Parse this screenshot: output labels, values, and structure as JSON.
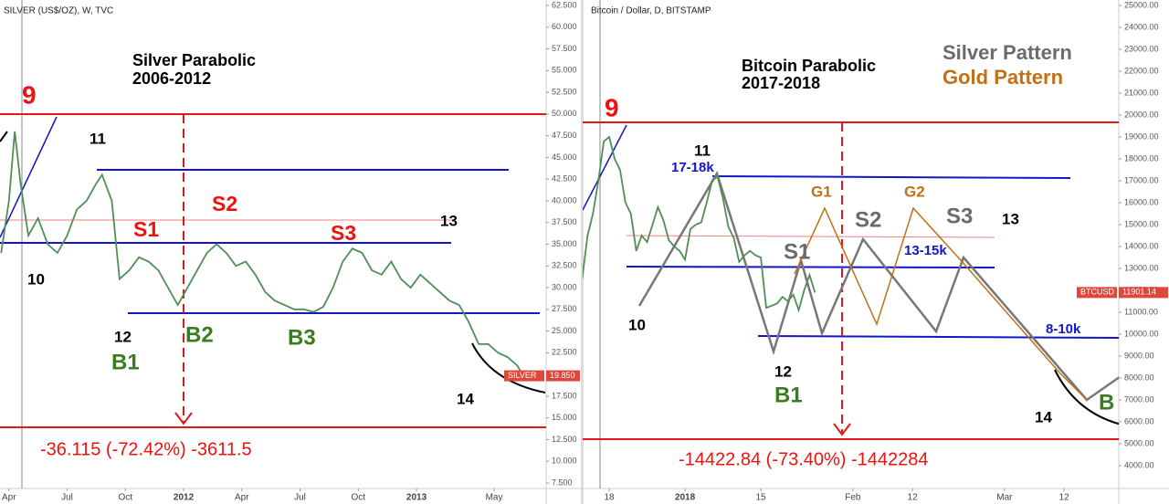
{
  "chart_data": [
    {
      "type": "line",
      "source": "SILVER (US$/OZ), W, TVC",
      "title": "Silver Parabolic",
      "subtitle": "2006-2012",
      "x": [
        2.6,
        3.0,
        3.3,
        3.6,
        4.0,
        4.5,
        5.0,
        5.5,
        6.0,
        6.5,
        7.0,
        7.5,
        7.8,
        8.3,
        8.7,
        9.2,
        9.7,
        10.2,
        10.7,
        11.2,
        11.7,
        12.2,
        12.7,
        13.2,
        13.7,
        14.2,
        14.7,
        15.2,
        15.7,
        16.2,
        16.7,
        17.2,
        17.7,
        18.2,
        18.7,
        19.2,
        19.7,
        20.2,
        20.7,
        21.2,
        21.7,
        22.2,
        22.7,
        23.2,
        23.7,
        24.2,
        24.7,
        25.2,
        25.7,
        26.2,
        26.7,
        27.2,
        27.7,
        28.2,
        28.7,
        29.2,
        29.5
      ],
      "series": [
        {
          "name": "SILVER",
          "color": "#4f8f57",
          "values": [
            34,
            40,
            48,
            42,
            36,
            38,
            35,
            34,
            36,
            39,
            40,
            42,
            43,
            40,
            31,
            32,
            33.5,
            33,
            32,
            30,
            28,
            30,
            32,
            34,
            35,
            34,
            32.5,
            33,
            31.5,
            29.5,
            28.5,
            28,
            27.5,
            27.5,
            27.2,
            27.8,
            30,
            33,
            34.5,
            34,
            32,
            31.5,
            33,
            31,
            30,
            31.5,
            30.5,
            29.5,
            28.5,
            28,
            26,
            23.5,
            23.5,
            22.5,
            22,
            21,
            19.85
          ]
        }
      ],
      "price_tag": {
        "value": 19.85,
        "label": "19.850",
        "color": "#e0473b"
      },
      "xlim": [
        2.54,
        30.68
      ],
      "xticks": [
        {
          "value": 3,
          "label": "Apr"
        },
        {
          "value": 6,
          "label": "Jul"
        },
        {
          "value": 9,
          "label": "Oct"
        },
        {
          "value": 12,
          "label": "2012"
        },
        {
          "value": 15,
          "label": "Apr"
        },
        {
          "value": 18,
          "label": "Jul"
        },
        {
          "value": 21,
          "label": "Oct"
        },
        {
          "value": 24,
          "label": "2013"
        },
        {
          "value": 28,
          "label": "May"
        }
      ],
      "ylim": [
        6.87,
        63.13
      ],
      "yticks": [
        {
          "value": 7.5,
          "label": "7.500"
        },
        {
          "value": 10,
          "label": "10.000"
        },
        {
          "value": 12.5,
          "label": "12.500"
        },
        {
          "value": 15,
          "label": "15.000"
        },
        {
          "value": 17.5,
          "label": "17.500"
        },
        {
          "value": 20,
          "label": "20.000"
        },
        {
          "value": 22.5,
          "label": "22.500"
        },
        {
          "value": 25,
          "label": "25.000"
        },
        {
          "value": 27.5,
          "label": "27.500"
        },
        {
          "value": 30,
          "label": "30.000"
        },
        {
          "value": 32.5,
          "label": "32.500"
        },
        {
          "value": 35,
          "label": "35.000"
        },
        {
          "value": 37.5,
          "label": "37.500"
        },
        {
          "value": 40,
          "label": "40.000"
        },
        {
          "value": 42.5,
          "label": "42.500"
        },
        {
          "value": 45,
          "label": "45.000"
        },
        {
          "value": 47.5,
          "label": "47.500"
        },
        {
          "value": 50,
          "label": "50.000"
        },
        {
          "value": 52.5,
          "label": "52.500"
        },
        {
          "value": 55,
          "label": "55.000"
        },
        {
          "value": 57.5,
          "label": "57.500"
        },
        {
          "value": 60,
          "label": "60.000"
        },
        {
          "value": 62.5,
          "label": "62.500"
        }
      ],
      "grid": false,
      "annotations": [
        "9",
        "11",
        "10",
        "12",
        "13",
        "14",
        "S1",
        "S2",
        "S3",
        "B1",
        "B2",
        "B3",
        "-36.115 (-72.42%) -3611.5"
      ]
    },
    {
      "type": "line",
      "source": "Bitcoin / Dollar, D, BITSTAMP",
      "title": "Bitcoin Parabolic",
      "subtitle": "2017-2018",
      "legend": [
        {
          "name": "Silver Pattern",
          "color": "#6b6b6b"
        },
        {
          "name": "Gold Pattern",
          "color": "#c07016"
        }
      ],
      "x": [
        12,
        13,
        14,
        15,
        16,
        17,
        18,
        19,
        20,
        21,
        22,
        23,
        24,
        26,
        27,
        28,
        29,
        30,
        31,
        32,
        33,
        34,
        35,
        36,
        37,
        38,
        39,
        40,
        41,
        42,
        43,
        44,
        45,
        46,
        47,
        48,
        49,
        50,
        51,
        52,
        53,
        54,
        55
      ],
      "series": [
        {
          "name": "BTCUSD",
          "color": "#4f8f57",
          "values": [
            12500,
            14500,
            15500,
            17000,
            18800,
            19000,
            18000,
            17500,
            16000,
            15500,
            13800,
            14500,
            14200,
            15800,
            15200,
            14300,
            14000,
            13800,
            13400,
            14800,
            15000,
            15100,
            16000,
            17000,
            17200,
            16200,
            14900,
            14400,
            13300,
            13600,
            13800,
            13600,
            13500,
            11200,
            11300,
            11400,
            11700,
            11500,
            11800,
            11100,
            12000,
            12700,
            11900
          ]
        }
      ],
      "price_tag": {
        "value": 11901.14,
        "color": "#e0473b"
      },
      "xlim": [
        12.1,
        111.1
      ],
      "xticks": [
        {
          "value": 17,
          "label": "18"
        },
        {
          "value": 31,
          "label": "2018"
        },
        {
          "value": 45,
          "label": "15"
        },
        {
          "value": 62,
          "label": "Feb"
        },
        {
          "value": 73,
          "label": "12"
        },
        {
          "value": 90,
          "label": "Mar"
        },
        {
          "value": 101,
          "label": "12"
        }
      ],
      "ylim": [
        2958,
        25250
      ],
      "yticks": [
        {
          "value": 4000,
          "label": "4000.00"
        },
        {
          "value": 5000,
          "label": "5000.00"
        },
        {
          "value": 6000,
          "label": "6000.00"
        },
        {
          "value": 7000,
          "label": "7000.00"
        },
        {
          "value": 8000,
          "label": "8000.00"
        },
        {
          "value": 9000,
          "label": "9000.00"
        },
        {
          "value": 10000,
          "label": "10000.00"
        },
        {
          "value": 11000,
          "label": "11000.00"
        },
        {
          "value": 12000,
          "label": "12000.00"
        },
        {
          "value": 13000,
          "label": "13000.00"
        },
        {
          "value": 14000,
          "label": "14000.00"
        },
        {
          "value": 15000,
          "label": "15000.00"
        },
        {
          "value": 16000,
          "label": "16000.00"
        },
        {
          "value": 17000,
          "label": "17000.00"
        },
        {
          "value": 18000,
          "label": "18000.00"
        },
        {
          "value": 19000,
          "label": "19000.00"
        },
        {
          "value": 20000,
          "label": "20000.00"
        },
        {
          "value": 21000,
          "label": "21000.00"
        },
        {
          "value": 22000,
          "label": "22000.00"
        },
        {
          "value": 23000,
          "label": "23000.00"
        },
        {
          "value": 24000,
          "label": "24000.00"
        },
        {
          "value": 25000,
          "label": "25000.00"
        }
      ],
      "grid": false,
      "annotations": [
        "9",
        "11",
        "17-18k",
        "10",
        "12",
        "B1",
        "13",
        "14",
        "S1",
        "S2",
        "S3",
        "G1",
        "G2",
        "13-15k",
        "8-10k",
        "B",
        "-14422.84 (-73.40%) -1442284"
      ]
    }
  ]
}
